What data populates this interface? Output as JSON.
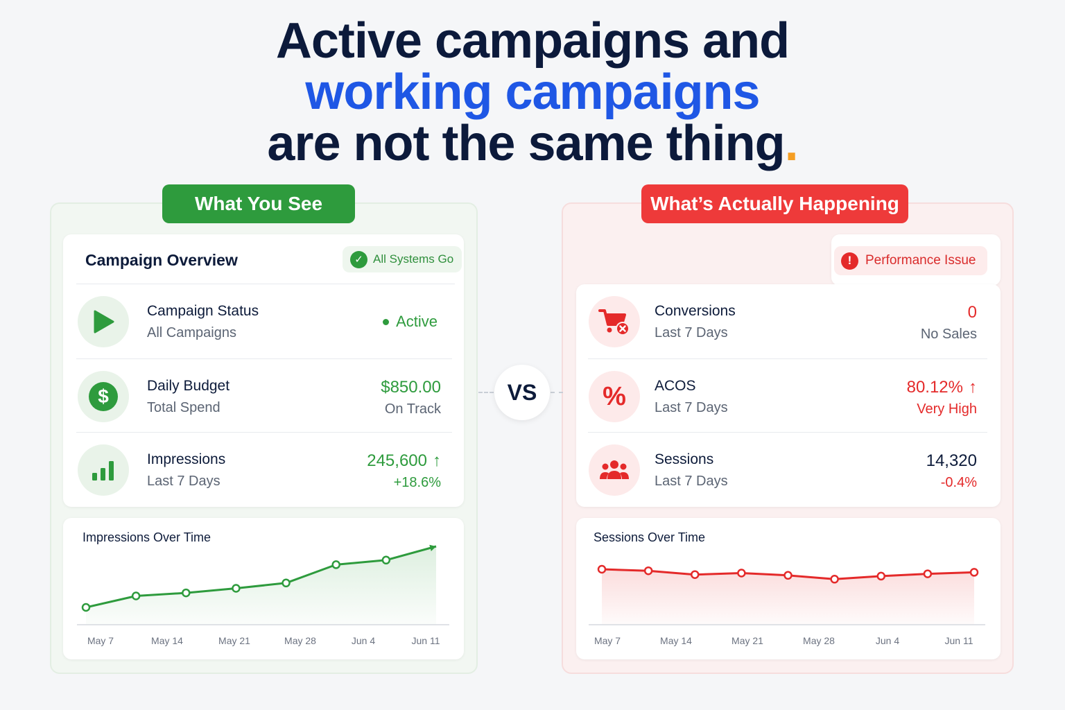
{
  "headline": {
    "line1": "Active campaigns and",
    "line2": "working campaigns",
    "line3": "are not the same thing",
    "dot": "."
  },
  "left": {
    "pill": "What You See",
    "title": "Campaign Overview",
    "badge": "All Systems Go",
    "rows": [
      {
        "label": "Campaign Status",
        "sub": "All Campaigns",
        "value": "Active"
      },
      {
        "label": "Daily Budget",
        "sub": "Total Spend",
        "value": "$850.00",
        "value2": "On Track"
      },
      {
        "label": "Impressions",
        "sub": "Last 7 Days",
        "value": "245,600",
        "value2": "+18.6%"
      }
    ],
    "chart_title": "Impressions Over Time"
  },
  "right": {
    "pill": "What’s Actually Happening",
    "badge": "Performance Issue",
    "rows": [
      {
        "label": "Conversions",
        "sub": "Last 7 Days",
        "value": "0",
        "value2": "No Sales"
      },
      {
        "label": "ACOS",
        "sub": "Last 7 Days",
        "value": "80.12%",
        "value2": "Very High"
      },
      {
        "label": "Sessions",
        "sub": "Last 7 Days",
        "value": "14,320",
        "value2": "-0.4%"
      }
    ],
    "chart_title": "Sessions Over Time"
  },
  "vs": "VS",
  "colors": {
    "green": "#2e9b3d",
    "red": "#e42a2a",
    "blue": "#1f57e5",
    "orange": "#f59e23",
    "navy": "#0c1a3b"
  },
  "chart_data": [
    {
      "type": "area",
      "title": "Impressions Over Time",
      "x_ticks": [
        "May 7",
        "May 14",
        "May 21",
        "May 28",
        "Jun 4",
        "Jun 11"
      ],
      "series": [
        {
          "values": [
            10,
            25,
            29,
            35,
            42,
            66,
            72,
            90
          ]
        }
      ],
      "color": "#2e9b3d",
      "grid": false
    },
    {
      "type": "area",
      "title": "Sessions Over Time",
      "x_ticks": [
        "May 7",
        "May 14",
        "May 21",
        "May 28",
        "Jun 4",
        "Jun 11"
      ],
      "series": [
        {
          "values": [
            60,
            58,
            53,
            55,
            52,
            47,
            51,
            54,
            56
          ]
        }
      ],
      "color": "#e42a2a",
      "grid": false
    }
  ]
}
